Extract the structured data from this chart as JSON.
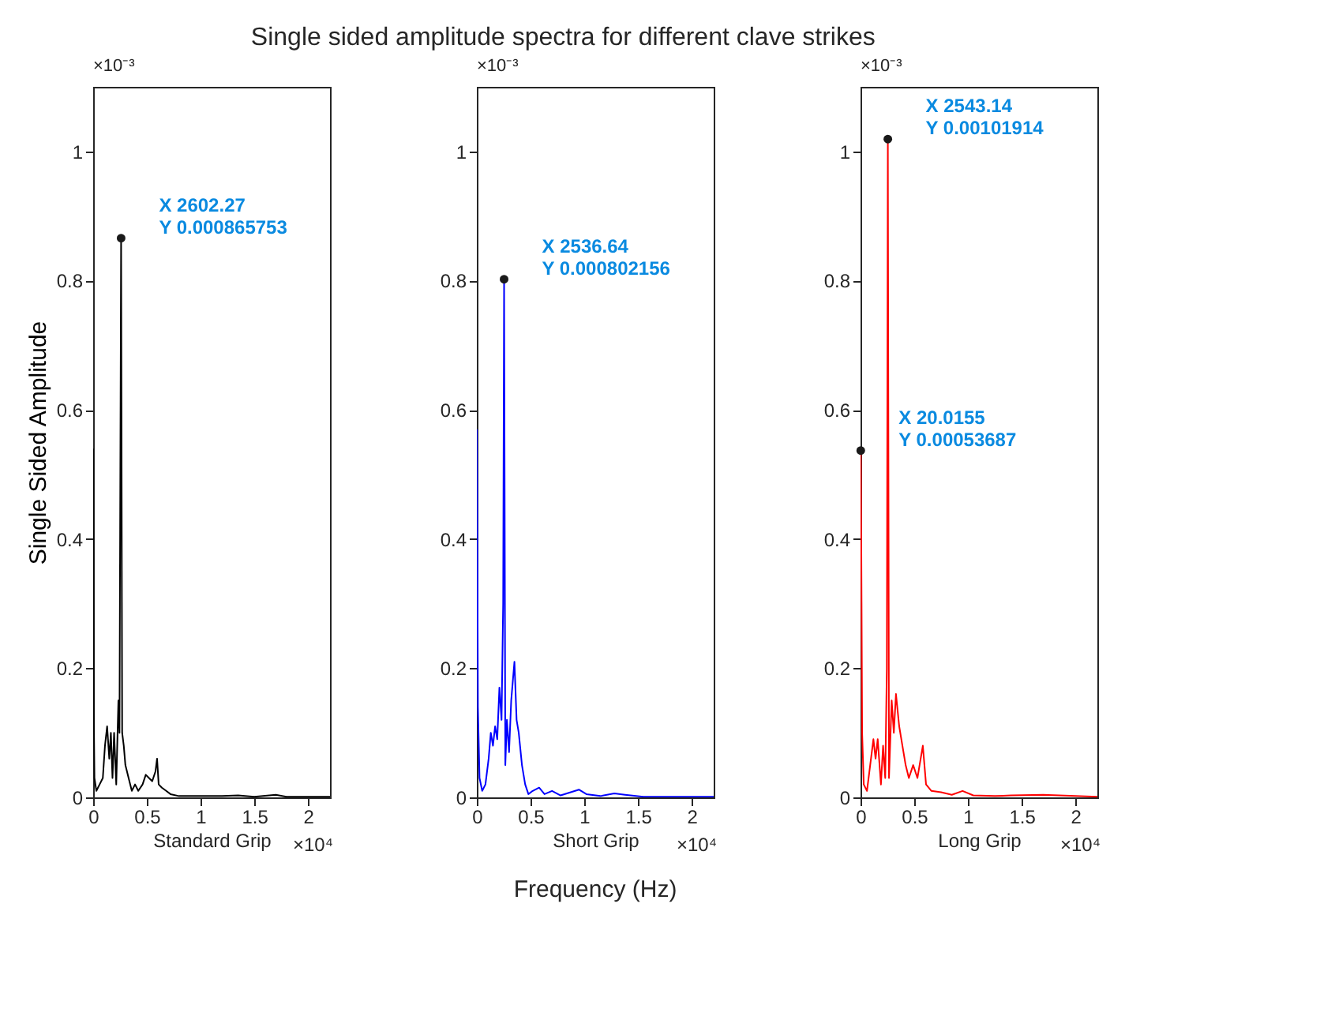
{
  "chart_data": [
    {
      "type": "line",
      "title": "Single sided amplitude spectra for different clave strikes",
      "xlabel": "Standard Grip",
      "ylabel": "Single Sided Amplitude",
      "xlim": [
        0,
        2.205
      ],
      "ylim": [
        0,
        1.1
      ],
      "grid": false,
      "xticks": [
        0,
        0.5,
        1,
        1.5,
        2
      ],
      "yticks": [
        0,
        0.2,
        0.4,
        0.6,
        0.8,
        1
      ],
      "annotations": [
        "×10⁻³",
        "×10⁴",
        {
          "text": "X 2602.27\nY 0.000865753",
          "x": 0.260227,
          "y": 0.865753
        }
      ],
      "series": [
        {
          "color": "#000000",
          "x": [
            0,
            0.002,
            0.006,
            0.012,
            0.03,
            0.06,
            0.09,
            0.11,
            0.13,
            0.15,
            0.165,
            0.18,
            0.195,
            0.215,
            0.235,
            0.245,
            0.260227,
            0.27,
            0.285,
            0.3,
            0.33,
            0.36,
            0.39,
            0.42,
            0.46,
            0.49,
            0.52,
            0.55,
            0.58,
            0.595,
            0.61,
            0.64,
            0.68,
            0.72,
            0.8,
            1.0,
            1.2,
            1.35,
            1.5,
            1.7,
            1.8,
            2.205
          ],
          "values": [
            0.54,
            0.38,
            0.13,
            0.03,
            0.01,
            0.02,
            0.03,
            0.08,
            0.11,
            0.06,
            0.1,
            0.03,
            0.1,
            0.02,
            0.15,
            0.1,
            0.865753,
            0.1,
            0.08,
            0.05,
            0.03,
            0.01,
            0.02,
            0.01,
            0.02,
            0.035,
            0.03,
            0.025,
            0.04,
            0.06,
            0.02,
            0.015,
            0.01,
            0.005,
            0.002,
            0.002,
            0.002,
            0.003,
            0.001,
            0.004,
            0.001,
            0.001
          ]
        }
      ]
    },
    {
      "type": "line",
      "xlabel": "Short Grip",
      "xlim": [
        0,
        2.205
      ],
      "ylim": [
        0,
        1.1
      ],
      "grid": false,
      "xticks": [
        0,
        0.5,
        1,
        1.5,
        2
      ],
      "yticks": [
        0,
        0.2,
        0.4,
        0.6,
        0.8,
        1
      ],
      "annotations": [
        "×10⁻³",
        "×10⁴",
        "Frequency (Hz)",
        {
          "text": "X 2536.64\nY 0.000802156",
          "x": 0.253664,
          "y": 0.802156
        }
      ],
      "series": [
        {
          "color": "#0000ff",
          "x": [
            0,
            0.003,
            0.01,
            0.025,
            0.05,
            0.08,
            0.11,
            0.13,
            0.15,
            0.17,
            0.19,
            0.21,
            0.23,
            0.245,
            0.253664,
            0.265,
            0.28,
            0.3,
            0.32,
            0.35,
            0.37,
            0.39,
            0.42,
            0.45,
            0.48,
            0.52,
            0.58,
            0.63,
            0.7,
            0.78,
            0.95,
            1.02,
            1.15,
            1.28,
            1.38,
            1.55,
            1.8,
            2.205
          ],
          "values": [
            0.57,
            0.48,
            0.14,
            0.03,
            0.01,
            0.02,
            0.06,
            0.1,
            0.08,
            0.11,
            0.09,
            0.17,
            0.12,
            0.3,
            0.802156,
            0.05,
            0.12,
            0.07,
            0.15,
            0.21,
            0.12,
            0.1,
            0.05,
            0.02,
            0.005,
            0.01,
            0.015,
            0.005,
            0.01,
            0.003,
            0.012,
            0.005,
            0.002,
            0.006,
            0.004,
            0.001,
            0.001,
            0.001
          ]
        }
      ]
    },
    {
      "type": "line",
      "xlabel": "Long Grip",
      "xlim": [
        0,
        2.205
      ],
      "ylim": [
        0,
        1.1
      ],
      "grid": false,
      "xticks": [
        0,
        0.5,
        1,
        1.5,
        2
      ],
      "yticks": [
        0,
        0.2,
        0.4,
        0.6,
        0.8,
        1
      ],
      "annotations": [
        "×10⁻³",
        "×10⁴",
        {
          "text": "X 2543.14\nY 0.00101914",
          "x": 0.254314,
          "y": 1.01914
        },
        {
          "text": "X 20.0155\nY 0.00053687",
          "x": 0.00200155,
          "y": 0.53687
        }
      ],
      "series": [
        {
          "color": "#ff0000",
          "x": [
            0,
            0.00200155,
            0.006,
            0.015,
            0.03,
            0.06,
            0.09,
            0.12,
            0.14,
            0.16,
            0.19,
            0.21,
            0.23,
            0.245,
            0.254314,
            0.265,
            0.29,
            0.31,
            0.33,
            0.36,
            0.39,
            0.42,
            0.45,
            0.49,
            0.53,
            0.58,
            0.61,
            0.66,
            0.75,
            0.85,
            0.95,
            1.05,
            1.25,
            1.4,
            1.7,
            2.205
          ],
          "values": [
            0.5,
            0.53687,
            0.43,
            0.1,
            0.02,
            0.01,
            0.05,
            0.09,
            0.06,
            0.09,
            0.02,
            0.08,
            0.03,
            0.2,
            1.01914,
            0.03,
            0.15,
            0.1,
            0.16,
            0.11,
            0.08,
            0.05,
            0.03,
            0.05,
            0.03,
            0.08,
            0.02,
            0.01,
            0.008,
            0.004,
            0.01,
            0.003,
            0.002,
            0.003,
            0.004,
            0.001
          ]
        }
      ]
    }
  ]
}
